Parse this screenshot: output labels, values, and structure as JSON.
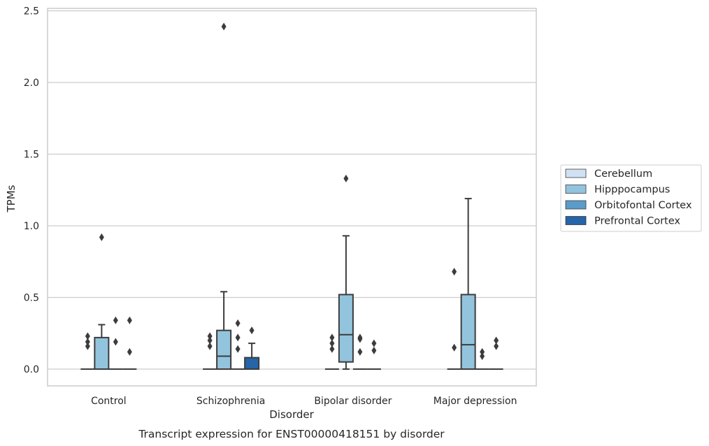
{
  "chart_data": {
    "type": "box",
    "title": "",
    "caption": "Transcript expression for ENST00000418151 by disorder",
    "xlabel": "Disorder",
    "ylabel": "TPMs",
    "ylim": [
      -0.12,
      2.52
    ],
    "yticks": [
      0.0,
      0.5,
      1.0,
      1.5,
      2.0,
      2.5
    ],
    "ytick_labels": [
      "0.0",
      "0.5",
      "1.0",
      "1.5",
      "2.0",
      "2.5"
    ],
    "grid": "horizontal",
    "legend_position": "right",
    "categories": [
      "Control",
      "Schizophrenia",
      "Bipolar disorder",
      "Major depression"
    ],
    "series": [
      {
        "name": "Cerebellum",
        "color": "#cfe1f2",
        "boxes": [
          {
            "q1": 0,
            "median": 0,
            "q3": 0,
            "whisker_low": 0,
            "whisker_high": 0,
            "outliers": [
              0.16,
              0.19,
              0.23
            ]
          },
          {
            "q1": 0,
            "median": 0,
            "q3": 0,
            "whisker_low": 0,
            "whisker_high": 0,
            "outliers": [
              0.16,
              0.2,
              0.23
            ]
          },
          {
            "q1": 0,
            "median": 0,
            "q3": 0,
            "whisker_low": 0,
            "whisker_high": 0,
            "outliers": [
              0.14,
              0.18,
              0.22
            ]
          },
          {
            "q1": 0,
            "median": 0,
            "q3": 0,
            "whisker_low": 0,
            "whisker_high": 0,
            "outliers": [
              0.15,
              0.68
            ]
          }
        ]
      },
      {
        "name": "Hipppocampus",
        "color": "#93c4de",
        "boxes": [
          {
            "q1": 0,
            "median": 0,
            "q3": 0.22,
            "whisker_low": 0,
            "whisker_high": 0.31,
            "outliers": [
              0.92
            ]
          },
          {
            "q1": 0,
            "median": 0.09,
            "q3": 0.27,
            "whisker_low": 0,
            "whisker_high": 0.54,
            "outliers": [
              2.39
            ]
          },
          {
            "q1": 0.05,
            "median": 0.24,
            "q3": 0.52,
            "whisker_low": 0,
            "whisker_high": 0.93,
            "outliers": [
              1.33
            ]
          },
          {
            "q1": 0,
            "median": 0.17,
            "q3": 0.52,
            "whisker_low": 0,
            "whisker_high": 1.19,
            "outliers": []
          }
        ]
      },
      {
        "name": "Orbitofontal Cortex",
        "color": "#5a9bc9",
        "boxes": [
          {
            "q1": 0,
            "median": 0,
            "q3": 0,
            "whisker_low": 0,
            "whisker_high": 0,
            "outliers": [
              0.19,
              0.34
            ]
          },
          {
            "q1": 0,
            "median": 0,
            "q3": 0,
            "whisker_low": 0,
            "whisker_high": 0,
            "outliers": [
              0.14,
              0.22,
              0.32
            ]
          },
          {
            "q1": 0,
            "median": 0,
            "q3": 0,
            "whisker_low": 0,
            "whisker_high": 0,
            "outliers": [
              0.12,
              0.21,
              0.22
            ]
          },
          {
            "q1": 0,
            "median": 0,
            "q3": 0,
            "whisker_low": 0,
            "whisker_high": 0,
            "outliers": [
              0.09,
              0.12
            ]
          }
        ]
      },
      {
        "name": "Prefrontal Cortex",
        "color": "#2565a8",
        "boxes": [
          {
            "q1": 0,
            "median": 0,
            "q3": 0,
            "whisker_low": 0,
            "whisker_high": 0,
            "outliers": [
              0.12,
              0.34
            ]
          },
          {
            "q1": 0,
            "median": 0,
            "q3": 0.08,
            "whisker_low": 0,
            "whisker_high": 0.18,
            "outliers": [
              0.27
            ]
          },
          {
            "q1": 0,
            "median": 0,
            "q3": 0,
            "whisker_low": 0,
            "whisker_high": 0,
            "outliers": [
              0.13,
              0.18
            ]
          },
          {
            "q1": 0,
            "median": 0,
            "q3": 0,
            "whisker_low": 0,
            "whisker_high": 0,
            "outliers": [
              0.16,
              0.2
            ]
          }
        ]
      }
    ]
  }
}
